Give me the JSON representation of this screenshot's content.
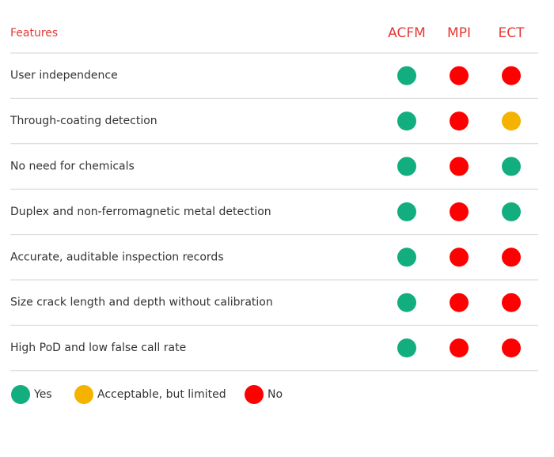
{
  "header": {
    "features": "Features",
    "columns": [
      "ACFM",
      "MPI",
      "ECT"
    ]
  },
  "legend": [
    {
      "label": "Yes",
      "color": "#13ae7f"
    },
    {
      "label": "Acceptable, but limited",
      "color": "#f5b300"
    },
    {
      "label": "No",
      "color": "#ff0000"
    }
  ],
  "table": {
    "rows": [
      {
        "label": "User independence",
        "cells": [
          0,
          2,
          2
        ]
      },
      {
        "label": "Through-coating detection",
        "cells": [
          0,
          2,
          1
        ]
      },
      {
        "label": "No need for chemicals",
        "cells": [
          0,
          2,
          0
        ]
      },
      {
        "label": "Duplex and non-ferromagnetic metal detection",
        "cells": [
          0,
          2,
          0
        ]
      },
      {
        "label": "Accurate, auditable inspection records",
        "cells": [
          0,
          2,
          2
        ]
      },
      {
        "label": "Size crack length and depth without calibration",
        "cells": [
          0,
          2,
          2
        ]
      },
      {
        "label": "High PoD and low false call rate",
        "cells": [
          0,
          2,
          2
        ]
      }
    ]
  }
}
